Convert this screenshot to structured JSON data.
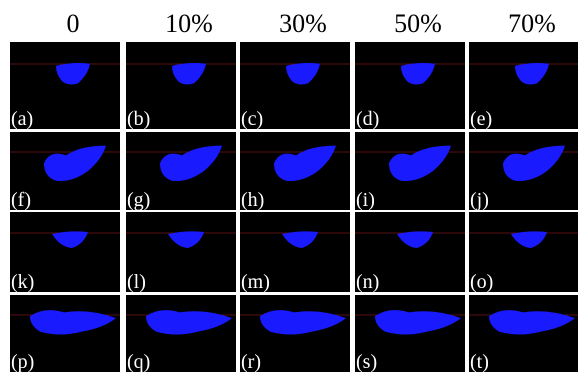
{
  "columns": [
    "0",
    "10%",
    "30%",
    "50%",
    "70%"
  ],
  "panels": [
    [
      "(a)",
      "(b)",
      "(c)",
      "(d)",
      "(e)"
    ],
    [
      "(f)",
      "(g)",
      "(h)",
      "(i)",
      "(j)"
    ],
    [
      "(k)",
      "(l)",
      "(m)",
      "(n)",
      "(o)"
    ],
    [
      "(p)",
      "(q)",
      "(r)",
      "(s)",
      "(t)"
    ]
  ]
}
